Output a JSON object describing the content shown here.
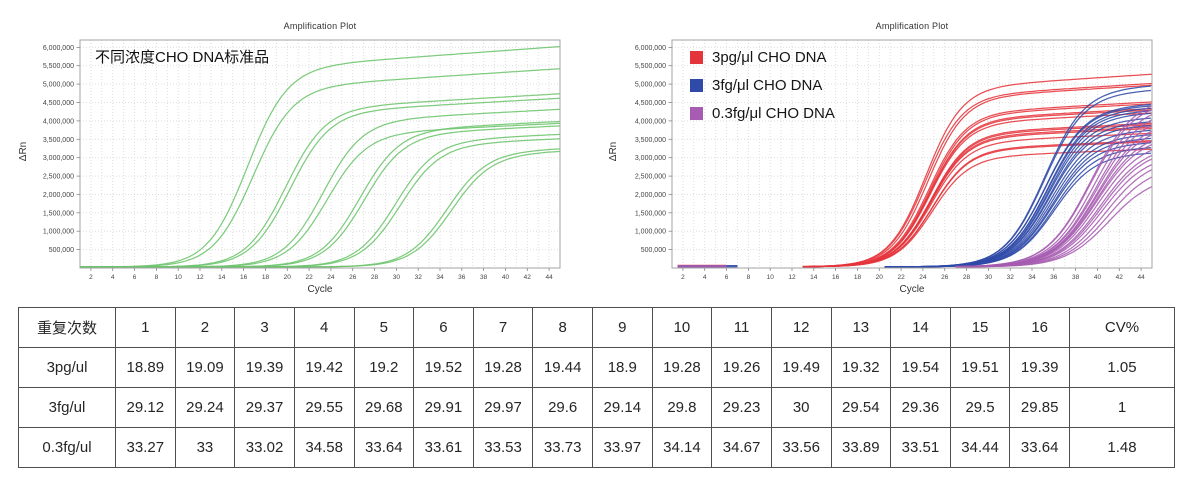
{
  "table": {
    "headers": [
      "重复次数",
      "1",
      "2",
      "3",
      "4",
      "5",
      "6",
      "7",
      "8",
      "9",
      "10",
      "11",
      "12",
      "13",
      "14",
      "15",
      "16",
      "CV%"
    ],
    "rows": [
      {
        "label": "3pg/ul",
        "values": [
          "18.89",
          "19.09",
          "19.39",
          "19.42",
          "19.2",
          "19.52",
          "19.28",
          "19.44",
          "18.9",
          "19.28",
          "19.26",
          "19.49",
          "19.32",
          "19.54",
          "19.51",
          "19.39"
        ],
        "cv": "1.05"
      },
      {
        "label": "3fg/ul",
        "values": [
          "29.12",
          "29.24",
          "29.37",
          "29.55",
          "29.68",
          "29.91",
          "29.97",
          "29.6",
          "29.14",
          "29.8",
          "29.23",
          "30",
          "29.54",
          "29.36",
          "29.5",
          "29.85"
        ],
        "cv": "1"
      },
      {
        "label": "0.3fg/ul",
        "values": [
          "33.27",
          "33",
          "33.02",
          "34.58",
          "33.64",
          "33.61",
          "33.53",
          "33.73",
          "33.97",
          "34.14",
          "34.67",
          "33.56",
          "33.89",
          "33.51",
          "34.44",
          "33.64"
        ],
        "cv": "1.48"
      }
    ]
  },
  "chart_data": [
    {
      "type": "line",
      "panel": "left",
      "title": "Amplification Plot",
      "annotation": "不同浓度CHO DNA标准品",
      "xlabel": "Cycle",
      "ylabel": "ΔRn",
      "xlim": [
        1,
        45
      ],
      "ylim": [
        0,
        6200000
      ],
      "x_ticks": [
        2,
        4,
        6,
        8,
        10,
        12,
        14,
        16,
        18,
        20,
        22,
        24,
        26,
        28,
        30,
        32,
        34,
        36,
        38,
        40,
        42,
        44
      ],
      "y_ticks": [
        500000,
        1000000,
        1500000,
        2000000,
        2500000,
        3000000,
        3500000,
        4000000,
        4500000,
        5000000,
        5500000,
        6000000
      ],
      "grid": "dotted",
      "legend_position": "none",
      "series": [
        {
          "name": "CHO DNA standards (serial dilutions, duplicates)",
          "color": "#6cc46c",
          "k": 0.55,
          "drift": 0.004,
          "baseline": 28000,
          "x_start": 1,
          "curves": [
            {
              "mid": 16.3,
              "end_value_cycle44": 6000000
            },
            {
              "mid": 16.8,
              "end_value_cycle44": 5400000
            },
            {
              "mid": 19.8,
              "end_value_cycle44": 4720000
            },
            {
              "mid": 20.2,
              "end_value_cycle44": 4600000
            },
            {
              "mid": 23.2,
              "end_value_cycle44": 4300000
            },
            {
              "mid": 23.6,
              "end_value_cycle44": 3920000
            },
            {
              "mid": 26.6,
              "end_value_cycle44": 3970000
            },
            {
              "mid": 27.0,
              "end_value_cycle44": 3850000
            },
            {
              "mid": 29.9,
              "end_value_cycle44": 3620000
            },
            {
              "mid": 30.3,
              "end_value_cycle44": 3500000
            },
            {
              "mid": 34.6,
              "end_value_cycle44": 3220000
            },
            {
              "mid": 35.0,
              "end_value_cycle44": 3150000
            }
          ]
        }
      ]
    },
    {
      "type": "line",
      "panel": "right",
      "title": "Amplification Plot",
      "annotation": "",
      "xlabel": "Cycle",
      "ylabel": "ΔRn",
      "xlim": [
        1,
        45
      ],
      "ylim": [
        0,
        6200000
      ],
      "x_ticks": [
        2,
        4,
        6,
        8,
        10,
        12,
        14,
        16,
        18,
        20,
        22,
        24,
        26,
        28,
        30,
        32,
        34,
        36,
        38,
        40,
        42,
        44
      ],
      "y_ticks": [
        500000,
        1000000,
        1500000,
        2000000,
        2500000,
        3000000,
        3500000,
        4000000,
        4500000,
        5000000,
        5500000,
        6000000
      ],
      "grid": "dotted",
      "legend_position": "upper-left",
      "series": [
        {
          "name": "3pg/μl CHO DNA",
          "color": "#e5353c",
          "k": 0.6,
          "drift": 0.004,
          "baseline": 34000,
          "x_start": 13,
          "pre_segment": [
            1.5,
            6
          ],
          "curves": [
            {
              "mid": 24.2,
              "end_value_cycle44": 5250000
            },
            {
              "mid": 24.2,
              "end_value_cycle44": 5000000
            },
            {
              "mid": 24.4,
              "end_value_cycle44": 4950000
            },
            {
              "mid": 24.5,
              "end_value_cycle44": 4500000
            },
            {
              "mid": 24.6,
              "end_value_cycle44": 4450000
            },
            {
              "mid": 24.6,
              "end_value_cycle44": 4320000
            },
            {
              "mid": 24.6,
              "end_value_cycle44": 4280000
            },
            {
              "mid": 24.6,
              "end_value_cycle44": 4200000
            },
            {
              "mid": 24.7,
              "end_value_cycle44": 3920000
            },
            {
              "mid": 24.7,
              "end_value_cycle44": 3880000
            },
            {
              "mid": 24.7,
              "end_value_cycle44": 3820000
            },
            {
              "mid": 24.7,
              "end_value_cycle44": 3780000
            },
            {
              "mid": 24.7,
              "end_value_cycle44": 3650000
            },
            {
              "mid": 24.8,
              "end_value_cycle44": 3450000
            },
            {
              "mid": 24.8,
              "end_value_cycle44": 3420000
            },
            {
              "mid": 24.8,
              "end_value_cycle44": 3220000
            }
          ]
        },
        {
          "name": "3fg/μl CHO DNA",
          "color": "#2f4aa8",
          "k": 0.55,
          "drift": 0.003,
          "baseline": 30000,
          "x_start": 20.5,
          "pre_segment": [
            1.5,
            7
          ],
          "curves": [
            {
              "mid": 35.1,
              "end_value_cycle44": 4920000
            },
            {
              "mid": 35.1,
              "end_value_cycle44": 4800000
            },
            {
              "mid": 35.2,
              "end_value_cycle44": 4420000
            },
            {
              "mid": 35.2,
              "end_value_cycle44": 4380000
            },
            {
              "mid": 35.4,
              "end_value_cycle44": 4320000
            },
            {
              "mid": 35.4,
              "end_value_cycle44": 4250000
            },
            {
              "mid": 35.5,
              "end_value_cycle44": 4180000
            },
            {
              "mid": 35.5,
              "end_value_cycle44": 4050000
            },
            {
              "mid": 35.6,
              "end_value_cycle44": 3950000
            },
            {
              "mid": 35.6,
              "end_value_cycle44": 3850000
            },
            {
              "mid": 35.7,
              "end_value_cycle44": 3720000
            },
            {
              "mid": 35.8,
              "end_value_cycle44": 3600000
            },
            {
              "mid": 35.9,
              "end_value_cycle44": 3500000
            },
            {
              "mid": 35.9,
              "end_value_cycle44": 3380000
            },
            {
              "mid": 36.0,
              "end_value_cycle44": 3250000
            },
            {
              "mid": 36.0,
              "end_value_cycle44": 3100000
            }
          ]
        },
        {
          "name": "0.3fg/μl CHO DNA",
          "color": "#a65cb0",
          "k": 0.5,
          "drift": 0.003,
          "baseline": 30000,
          "x_start": 27,
          "pre_segment": [
            1.5,
            6
          ],
          "curves": [
            {
              "mid": 39.3,
              "end_value_cycle44": 4250000
            },
            {
              "mid": 39.3,
              "end_value_cycle44": 4150000
            },
            {
              "mid": 39.6,
              "end_value_cycle44": 4000000
            },
            {
              "mid": 39.8,
              "end_value_cycle44": 3850000
            },
            {
              "mid": 39.8,
              "end_value_cycle44": 3700000
            },
            {
              "mid": 39.9,
              "end_value_cycle44": 3550000
            },
            {
              "mid": 39.9,
              "end_value_cycle44": 3450000
            },
            {
              "mid": 39.9,
              "end_value_cycle44": 3300000
            },
            {
              "mid": 39.9,
              "end_value_cycle44": 3200000
            },
            {
              "mid": 40.0,
              "end_value_cycle44": 3050000
            },
            {
              "mid": 40.2,
              "end_value_cycle44": 2900000
            },
            {
              "mid": 40.3,
              "end_value_cycle44": 2800000
            },
            {
              "mid": 40.4,
              "end_value_cycle44": 2650000
            },
            {
              "mid": 40.7,
              "end_value_cycle44": 2500000
            },
            {
              "mid": 40.9,
              "end_value_cycle44": 2300000
            },
            {
              "mid": 41.0,
              "end_value_cycle44": 2050000
            }
          ]
        }
      ]
    }
  ]
}
